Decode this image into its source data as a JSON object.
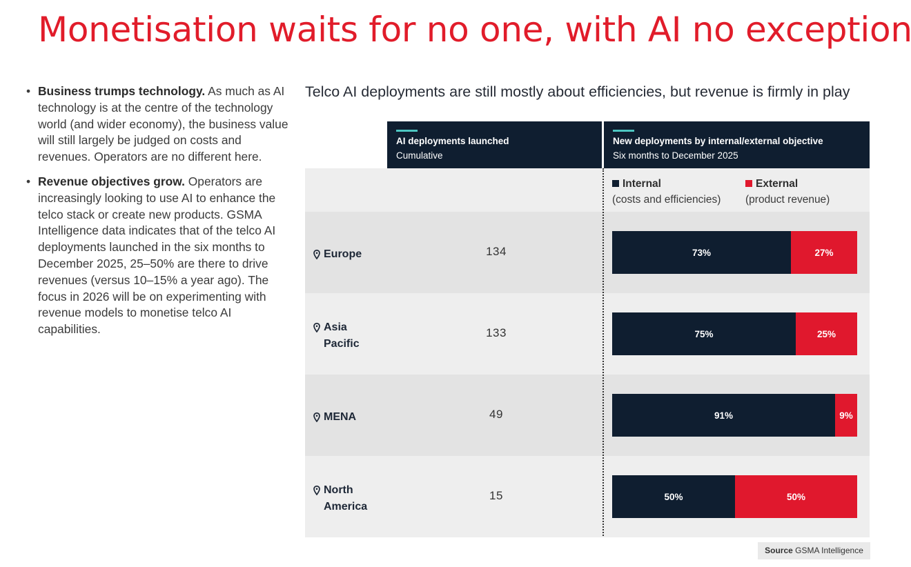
{
  "title": "Monetisation waits for no one, with AI no exception",
  "bullets": [
    {
      "bold": "Business trumps technology.",
      "text": " As much as AI technology is at the centre of the technology world (and wider economy), the business value will still largely be judged on costs and revenues. Operators are no different here."
    },
    {
      "bold": "Revenue objectives grow.",
      "text": " Operators are increasingly looking to use AI to enhance the telco stack or create new products. GSMA Intelligence data indicates that of the telco AI deployments launched in the six months to December 2025, 25–50% are there to drive revenues (versus 10–15% a year ago). The focus in 2026 will be on experimenting with revenue models to monetise telco AI capabilities."
    }
  ],
  "chart_data": {
    "type": "table",
    "title": "Telco AI deployments are still mostly about efficiencies, but revenue is firmly in play",
    "columns": {
      "launched": {
        "title": "AI deployments launched",
        "subtitle": "Cumulative"
      },
      "objective": {
        "title": "New deployments by internal/external objective",
        "subtitle": "Six months to December 2025"
      }
    },
    "legend": [
      {
        "name": "Internal",
        "note": "(costs and efficiencies)",
        "color": "#0f1e30"
      },
      {
        "name": "External",
        "note": "(product revenue)",
        "color": "#e0182d"
      }
    ],
    "rows": [
      {
        "region": [
          "Europe"
        ],
        "launched": 134,
        "internal": 73,
        "external": 27,
        "internal_label": "73%",
        "external_label": "27%"
      },
      {
        "region": [
          "Asia",
          "Pacific"
        ],
        "launched": 133,
        "internal": 75,
        "external": 25,
        "internal_label": "75%",
        "external_label": "25%"
      },
      {
        "region": [
          "MENA"
        ],
        "launched": 49,
        "internal": 91,
        "external": 9,
        "internal_label": "91%",
        "external_label": "9%"
      },
      {
        "region": [
          "North",
          "America"
        ],
        "launched": 15,
        "internal": 50,
        "external": 50,
        "internal_label": "50%",
        "external_label": "50%"
      }
    ],
    "row_shading": [
      "#e3e3e3",
      "#eeeeee"
    ],
    "source_label": "Source",
    "source": "GSMA Intelligence"
  }
}
